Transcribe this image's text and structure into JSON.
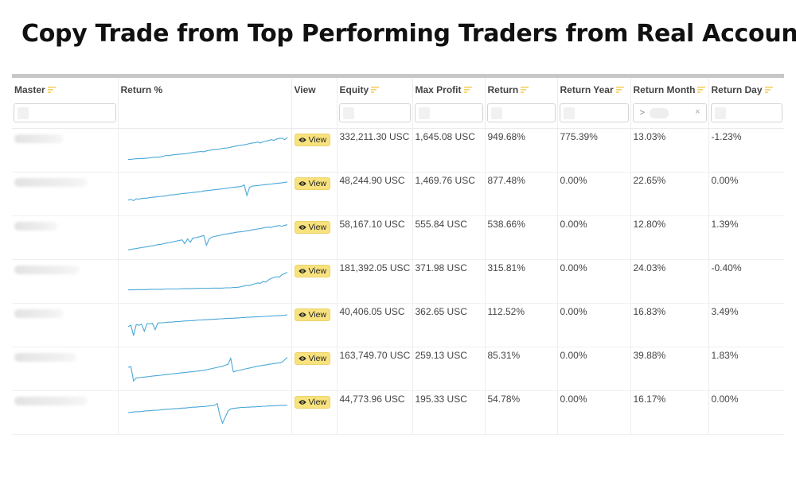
{
  "headline": "Copy Trade from Top Performing Traders from Real Accounts",
  "table": {
    "columns": [
      "Master",
      "Return %",
      "View",
      "Equity",
      "Max Profit",
      "Return",
      "Return Year",
      "Return Month",
      "Return Day"
    ],
    "filter": {
      "return_month_prefix": ">",
      "clear_symbol": "×"
    },
    "rows": [
      {
        "view": "View",
        "equity": "332,211.30 USC",
        "max_profit": "1,645.08 USC",
        "return": "949.68%",
        "return_year": "775.39%",
        "return_month": "13.03%",
        "return_day": "-1.23%",
        "spark": [
          0.2,
          0.2,
          0.21,
          0.22,
          0.22,
          0.23,
          0.23,
          0.24,
          0.25,
          0.26,
          0.27,
          0.27,
          0.28,
          0.3,
          0.33,
          0.32,
          0.34,
          0.35,
          0.36,
          0.37,
          0.38,
          0.38,
          0.4,
          0.41,
          0.43,
          0.44,
          0.45,
          0.46,
          0.45,
          0.48,
          0.5,
          0.51,
          0.52,
          0.53,
          0.54,
          0.56,
          0.57,
          0.58,
          0.6,
          0.62,
          0.64,
          0.66,
          0.67,
          0.68,
          0.7,
          0.72,
          0.74,
          0.75,
          0.77,
          0.74,
          0.78,
          0.8,
          0.82,
          0.85,
          0.83,
          0.87,
          0.89,
          0.9,
          0.85,
          0.92
        ]
      },
      {
        "view": "View",
        "equity": "48,244.90 USC",
        "max_profit": "1,469.76 USC",
        "return": "877.48%",
        "return_year": "0.00%",
        "return_month": "22.65%",
        "return_day": "0.00%",
        "spark": [
          0.3,
          0.32,
          0.28,
          0.34,
          0.33,
          0.35,
          0.36,
          0.36,
          0.38,
          0.39,
          0.4,
          0.41,
          0.42,
          0.43,
          0.44,
          0.46,
          0.47,
          0.47,
          0.49,
          0.5,
          0.51,
          0.52,
          0.53,
          0.54,
          0.55,
          0.56,
          0.57,
          0.58,
          0.6,
          0.61,
          0.62,
          0.63,
          0.64,
          0.65,
          0.66,
          0.67,
          0.68,
          0.7,
          0.71,
          0.72,
          0.73,
          0.74,
          0.75,
          0.8,
          0.45,
          0.72,
          0.76,
          0.77,
          0.78,
          0.79,
          0.8,
          0.81,
          0.82,
          0.83,
          0.84,
          0.85,
          0.86,
          0.87,
          0.88,
          0.9
        ]
      },
      {
        "view": "View",
        "equity": "58,167.10 USC",
        "max_profit": "555.84 USC",
        "return": "538.66%",
        "return_year": "0.00%",
        "return_month": "12.80%",
        "return_day": "1.39%",
        "spark": [
          0.1,
          0.11,
          0.13,
          0.14,
          0.16,
          0.17,
          0.19,
          0.2,
          0.22,
          0.23,
          0.25,
          0.27,
          0.28,
          0.3,
          0.32,
          0.33,
          0.35,
          0.37,
          0.39,
          0.41,
          0.43,
          0.3,
          0.46,
          0.35,
          0.49,
          0.5,
          0.52,
          0.54,
          0.58,
          0.25,
          0.45,
          0.52,
          0.54,
          0.56,
          0.58,
          0.6,
          0.62,
          0.63,
          0.65,
          0.66,
          0.68,
          0.69,
          0.7,
          0.71,
          0.73,
          0.74,
          0.76,
          0.77,
          0.79,
          0.8,
          0.82,
          0.84,
          0.85,
          0.84,
          0.87,
          0.89,
          0.9,
          0.88,
          0.91,
          0.93
        ]
      },
      {
        "view": "View",
        "equity": "181,392.05 USC",
        "max_profit": "371.98 USC",
        "return": "315.81%",
        "return_year": "0.00%",
        "return_month": "24.03%",
        "return_day": "-0.40%",
        "spark": [
          0.22,
          0.22,
          0.22,
          0.23,
          0.23,
          0.23,
          0.23,
          0.23,
          0.24,
          0.24,
          0.24,
          0.24,
          0.24,
          0.24,
          0.25,
          0.25,
          0.25,
          0.25,
          0.25,
          0.25,
          0.26,
          0.26,
          0.26,
          0.26,
          0.26,
          0.27,
          0.27,
          0.27,
          0.27,
          0.27,
          0.27,
          0.28,
          0.28,
          0.28,
          0.28,
          0.28,
          0.29,
          0.29,
          0.29,
          0.3,
          0.3,
          0.31,
          0.33,
          0.35,
          0.37,
          0.36,
          0.4,
          0.42,
          0.45,
          0.44,
          0.5,
          0.48,
          0.55,
          0.6,
          0.63,
          0.66,
          0.64,
          0.72,
          0.76,
          0.8
        ]
      },
      {
        "view": "View",
        "equity": "40,406.05 USC",
        "max_profit": "362.65 USC",
        "return": "112.52%",
        "return_year": "0.00%",
        "return_month": "16.83%",
        "return_day": "3.49%",
        "spark": [
          0.45,
          0.5,
          0.15,
          0.52,
          0.5,
          0.53,
          0.3,
          0.55,
          0.54,
          0.56,
          0.35,
          0.57,
          0.58,
          0.58,
          0.59,
          0.6,
          0.6,
          0.61,
          0.62,
          0.62,
          0.63,
          0.64,
          0.64,
          0.65,
          0.65,
          0.66,
          0.67,
          0.67,
          0.68,
          0.68,
          0.69,
          0.69,
          0.7,
          0.7,
          0.71,
          0.71,
          0.72,
          0.72,
          0.73,
          0.73,
          0.74,
          0.74,
          0.75,
          0.75,
          0.76,
          0.76,
          0.77,
          0.77,
          0.78,
          0.78,
          0.79,
          0.79,
          0.8,
          0.8,
          0.81,
          0.81,
          0.82,
          0.82,
          0.83,
          0.84
        ]
      },
      {
        "view": "View",
        "equity": "163,749.70 USC",
        "max_profit": "259.13 USC",
        "return": "85.31%",
        "return_year": "0.00%",
        "return_month": "39.88%",
        "return_day": "1.83%",
        "spark": [
          0.55,
          0.58,
          0.1,
          0.2,
          0.21,
          0.22,
          0.23,
          0.24,
          0.25,
          0.26,
          0.27,
          0.28,
          0.29,
          0.3,
          0.31,
          0.32,
          0.33,
          0.34,
          0.35,
          0.36,
          0.37,
          0.38,
          0.39,
          0.4,
          0.41,
          0.42,
          0.43,
          0.44,
          0.45,
          0.47,
          0.49,
          0.51,
          0.53,
          0.55,
          0.57,
          0.59,
          0.62,
          0.65,
          0.85,
          0.4,
          0.43,
          0.45,
          0.47,
          0.49,
          0.51,
          0.53,
          0.55,
          0.57,
          0.59,
          0.6,
          0.62,
          0.63,
          0.65,
          0.66,
          0.68,
          0.69,
          0.7,
          0.72,
          0.8,
          0.88
        ]
      },
      {
        "view": "View",
        "equity": "44,773.96 USC",
        "max_profit": "195.33 USC",
        "return": "54.78%",
        "return_year": "0.00%",
        "return_month": "16.17%",
        "return_day": "0.00%",
        "spark": [
          0.5,
          0.51,
          0.52,
          0.53,
          0.53,
          0.54,
          0.55,
          0.56,
          0.56,
          0.57,
          0.58,
          0.58,
          0.59,
          0.6,
          0.61,
          0.61,
          0.62,
          0.63,
          0.63,
          0.64,
          0.65,
          0.65,
          0.66,
          0.67,
          0.68,
          0.68,
          0.69,
          0.7,
          0.7,
          0.71,
          0.72,
          0.73,
          0.74,
          0.8,
          0.4,
          0.15,
          0.35,
          0.55,
          0.62,
          0.64,
          0.65,
          0.66,
          0.67,
          0.67,
          0.68,
          0.68,
          0.69,
          0.69,
          0.7,
          0.7,
          0.71,
          0.71,
          0.72,
          0.72,
          0.73,
          0.73,
          0.74,
          0.74,
          0.74,
          0.75
        ]
      }
    ]
  },
  "colors": {
    "sparkline": "#4aa8d8",
    "positive": "#1aa260",
    "negative": "#e05a4e",
    "view_button": "#f7e27e",
    "sort_icon": "#f2c94c"
  }
}
